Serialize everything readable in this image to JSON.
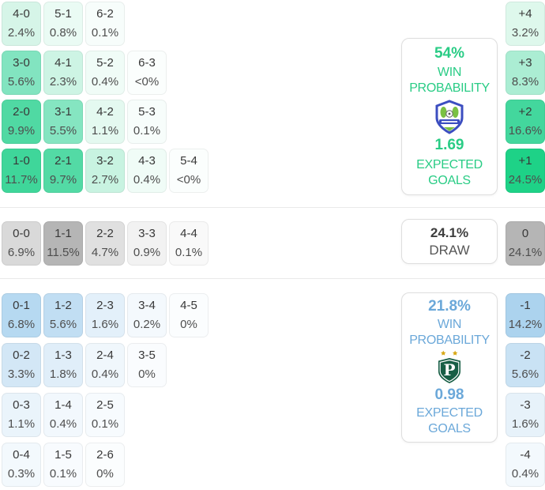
{
  "accent": {
    "green": "#29cc85",
    "blue": "#6ba8d9",
    "dark": "#3d3d3d"
  },
  "home": {
    "win_probability": "54%",
    "win_word1": "WIN",
    "win_word2": "PROBABILITY",
    "expected_goals": "1.69",
    "eg_word1": "EXPECTED",
    "eg_word2": "GOALS",
    "badge_icon": "home-team-badge",
    "cells": [
      {
        "score": "4-0",
        "pct": "2.4%",
        "row": 0,
        "col": 0,
        "color": "#d6f5e8"
      },
      {
        "score": "5-1",
        "pct": "0.8%",
        "row": 0,
        "col": 1,
        "color": "#eafbf4"
      },
      {
        "score": "6-2",
        "pct": "0.1%",
        "row": 0,
        "col": 2,
        "color": "#f7fdfb"
      },
      {
        "score": "3-0",
        "pct": "5.6%",
        "row": 1,
        "col": 0,
        "color": "#82e4c0"
      },
      {
        "score": "4-1",
        "pct": "2.3%",
        "row": 1,
        "col": 1,
        "color": "#cdf4e4"
      },
      {
        "score": "5-2",
        "pct": "0.4%",
        "row": 1,
        "col": 2,
        "color": "#f0fcf7"
      },
      {
        "score": "6-3",
        "pct": "<0%",
        "row": 1,
        "col": 3,
        "color": "#fbfefd"
      },
      {
        "score": "2-0",
        "pct": "9.9%",
        "row": 2,
        "col": 0,
        "color": "#50d9a3"
      },
      {
        "score": "3-1",
        "pct": "5.5%",
        "row": 2,
        "col": 1,
        "color": "#85e5c1"
      },
      {
        "score": "4-2",
        "pct": "1.1%",
        "row": 2,
        "col": 2,
        "color": "#e4f9f0"
      },
      {
        "score": "5-3",
        "pct": "0.1%",
        "row": 2,
        "col": 3,
        "color": "#f7fdfb"
      },
      {
        "score": "1-0",
        "pct": "11.7%",
        "row": 3,
        "col": 0,
        "color": "#3fd69a"
      },
      {
        "score": "2-1",
        "pct": "9.7%",
        "row": 3,
        "col": 1,
        "color": "#53daa5"
      },
      {
        "score": "3-2",
        "pct": "2.7%",
        "row": 3,
        "col": 2,
        "color": "#c8f3e1"
      },
      {
        "score": "4-3",
        "pct": "0.4%",
        "row": 3,
        "col": 3,
        "color": "#f0fcf7"
      },
      {
        "score": "5-4",
        "pct": "<0%",
        "row": 3,
        "col": 4,
        "color": "#fbfefd"
      }
    ],
    "diffs": [
      {
        "label": "+4",
        "pct": "3.2%",
        "row": 0,
        "color": "#def8ec"
      },
      {
        "label": "+3",
        "pct": "8.3%",
        "row": 1,
        "color": "#abedd3"
      },
      {
        "label": "+2",
        "pct": "16.6%",
        "row": 2,
        "color": "#43d79d"
      },
      {
        "label": "+1",
        "pct": "24.5%",
        "row": 3,
        "color": "#1ed287"
      }
    ]
  },
  "draw": {
    "probability": "24.1%",
    "label": "DRAW",
    "cells": [
      {
        "score": "0-0",
        "pct": "6.9%",
        "col": 0,
        "color": "#d9d9d9"
      },
      {
        "score": "1-1",
        "pct": "11.5%",
        "col": 1,
        "color": "#b5b5b5"
      },
      {
        "score": "2-2",
        "pct": "4.7%",
        "col": 2,
        "color": "#e0e0e0"
      },
      {
        "score": "3-3",
        "pct": "0.9%",
        "col": 3,
        "color": "#f2f2f2"
      },
      {
        "score": "4-4",
        "pct": "0.1%",
        "col": 4,
        "color": "#f9f9f9"
      }
    ],
    "diff": {
      "label": "0",
      "pct": "24.1%",
      "color": "#b5b5b5"
    }
  },
  "away": {
    "win_probability": "21.8%",
    "win_word1": "WIN",
    "win_word2": "PROBABILITY",
    "expected_goals": "0.98",
    "eg_word1": "EXPECTED",
    "eg_word2": "GOALS",
    "badge_icon": "away-team-badge",
    "cells": [
      {
        "score": "0-1",
        "pct": "6.8%",
        "row": 0,
        "col": 0,
        "color": "#b6d9f1"
      },
      {
        "score": "1-2",
        "pct": "5.6%",
        "row": 0,
        "col": 1,
        "color": "#c1def3"
      },
      {
        "score": "2-3",
        "pct": "1.6%",
        "row": 0,
        "col": 2,
        "color": "#e3f0fa"
      },
      {
        "score": "3-4",
        "pct": "0.2%",
        "row": 0,
        "col": 3,
        "color": "#f4f9fd"
      },
      {
        "score": "4-5",
        "pct": "0%",
        "row": 0,
        "col": 4,
        "color": "#fbfdfe"
      },
      {
        "score": "0-2",
        "pct": "3.3%",
        "row": 1,
        "col": 0,
        "color": "#d3e7f6"
      },
      {
        "score": "1-3",
        "pct": "1.8%",
        "row": 1,
        "col": 1,
        "color": "#e0eef9"
      },
      {
        "score": "2-4",
        "pct": "0.4%",
        "row": 1,
        "col": 2,
        "color": "#f0f7fc"
      },
      {
        "score": "3-5",
        "pct": "0%",
        "row": 1,
        "col": 3,
        "color": "#fafcfe"
      },
      {
        "score": "0-3",
        "pct": "1.1%",
        "row": 2,
        "col": 0,
        "color": "#eaf4fb"
      },
      {
        "score": "1-4",
        "pct": "0.4%",
        "row": 2,
        "col": 1,
        "color": "#f2f8fd"
      },
      {
        "score": "2-5",
        "pct": "0.1%",
        "row": 2,
        "col": 2,
        "color": "#f7fbfe"
      },
      {
        "score": "0-4",
        "pct": "0.3%",
        "row": 3,
        "col": 0,
        "color": "#f3f9fd"
      },
      {
        "score": "1-5",
        "pct": "0.1%",
        "row": 3,
        "col": 1,
        "color": "#f8fbfe"
      },
      {
        "score": "2-6",
        "pct": "0%",
        "row": 3,
        "col": 2,
        "color": "#fbfdfe"
      }
    ],
    "diffs": [
      {
        "label": "-1",
        "pct": "14.2%",
        "row": 0,
        "color": "#acd3ee"
      },
      {
        "label": "-2",
        "pct": "5.6%",
        "row": 1,
        "color": "#c9e2f4"
      },
      {
        "label": "-3",
        "pct": "1.6%",
        "row": 2,
        "color": "#e7f2fa"
      },
      {
        "label": "-4",
        "pct": "0.4%",
        "row": 3,
        "color": "#f3f9fd"
      }
    ]
  }
}
